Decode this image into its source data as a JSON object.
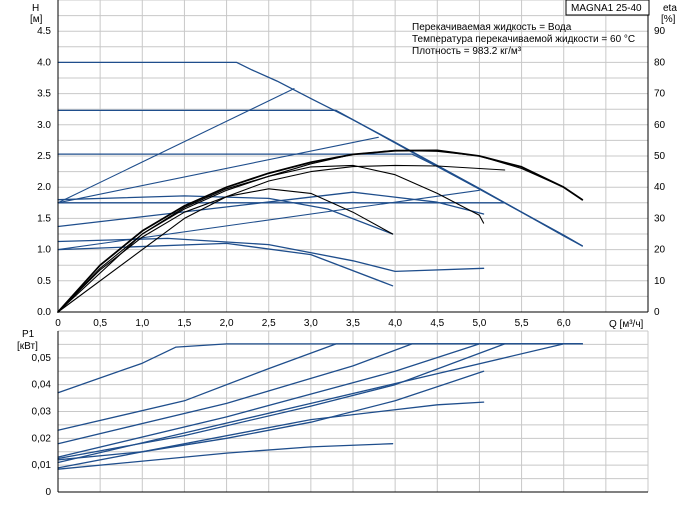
{
  "chart_data": [
    {
      "type": "line",
      "panel": "H-Q",
      "title_box": "MAGNA1 25-40",
      "info_lines": [
        "Перекачиваемая жидкость = Вода",
        "Температура перекачиваемой жидкости = 60 °C",
        "Плотность = 983.2 кг/м³"
      ],
      "ylabel": "H",
      "yunit": "[м]",
      "y2label": "eta",
      "y2unit": "[%]",
      "xlabel": "Q [м³/ч]",
      "xlim": [
        0,
        7.0
      ],
      "ylim": [
        0,
        5.0
      ],
      "y2lim": [
        0,
        100
      ],
      "grid": true,
      "xticks": [
        "0",
        "0,5",
        "1,0",
        "1,5",
        "2,0",
        "2,5",
        "3,0",
        "3,5",
        "4,0",
        "4,5",
        "5,0",
        "5,5",
        "6,0"
      ],
      "yticks": [
        "0.0",
        "0.5",
        "1.0",
        "1.5",
        "2.0",
        "2.5",
        "3.0",
        "3.5",
        "4.0",
        "4.5"
      ],
      "y2ticks": [
        "0",
        "10",
        "20",
        "30",
        "40",
        "50",
        "60",
        "70",
        "80",
        "90"
      ],
      "pump_series": [
        {
          "x": [
            0,
            2.12,
            2.3,
            2.6,
            3.0,
            3.5,
            4.0,
            4.5,
            5.0,
            5.5,
            6.0,
            6.22
          ],
          "y": [
            4.0,
            4.0,
            3.88,
            3.7,
            3.42,
            3.08,
            2.72,
            2.35,
            1.98,
            1.6,
            1.22,
            1.06
          ]
        },
        {
          "x": [
            0,
            3.3,
            4.0,
            4.5,
            5.0,
            5.5,
            6.0,
            6.22
          ],
          "y": [
            3.23,
            3.23,
            2.71,
            2.34,
            1.97,
            1.6,
            1.23,
            1.06
          ]
        },
        {
          "x": [
            0,
            4.2,
            4.5,
            5.0,
            5.5,
            6.0,
            6.22
          ],
          "y": [
            2.53,
            2.53,
            2.33,
            1.97,
            1.6,
            1.23,
            1.06
          ]
        },
        {
          "x": [
            0,
            5.3
          ],
          "y": [
            1.75,
            1.75
          ]
        },
        {
          "x": [
            0,
            1.5,
            2.5,
            3.2,
            3.97
          ],
          "y": [
            1.8,
            1.86,
            1.82,
            1.65,
            1.25
          ]
        },
        {
          "x": [
            0,
            1.3,
            2.5,
            3.5,
            4.0,
            5.05
          ],
          "y": [
            1.13,
            1.18,
            1.08,
            0.82,
            0.65,
            0.7
          ]
        },
        {
          "x": [
            0,
            2.0,
            3.0,
            3.97
          ],
          "y": [
            1.0,
            1.1,
            0.92,
            0.42
          ]
        },
        {
          "x": [
            0,
            3.5,
            4.5,
            5.05
          ],
          "y": [
            1.37,
            1.92,
            1.76,
            1.57
          ]
        }
      ],
      "system_series": [
        {
          "x": [
            0,
            2.8
          ],
          "y": [
            1.75,
            3.58
          ]
        },
        {
          "x": [
            0,
            3.8
          ],
          "y": [
            1.75,
            2.8
          ]
        },
        {
          "x": [
            0,
            5.0
          ],
          "y": [
            1.0,
            1.95
          ]
        }
      ],
      "eta_series": [
        {
          "x": [
            0,
            0.5,
            1.0,
            1.5,
            2.0,
            2.5,
            3.0,
            3.5,
            4.0,
            4.5,
            5.0,
            5.5,
            6.0,
            6.22
          ],
          "y": [
            0,
            15,
            26,
            34,
            40,
            44.5,
            48,
            50.5,
            51.7,
            51.8,
            50,
            46.5,
            40,
            36
          ]
        },
        {
          "x": [
            0,
            0.5,
            1.0,
            1.5,
            2.0,
            2.5,
            3.0,
            3.5,
            4.0,
            4.5,
            5.0,
            5.05
          ],
          "y": [
            0,
            14,
            25,
            33,
            39,
            43.5,
            46.5,
            47,
            44,
            38,
            31,
            28.5
          ]
        },
        {
          "x": [
            0,
            0.5,
            1.0,
            1.5,
            2.0,
            2.5,
            3.0,
            3.5,
            3.97
          ],
          "y": [
            0,
            13.5,
            24,
            32,
            37,
            39.5,
            38,
            32,
            25
          ]
        },
        {
          "x": [
            0,
            1.5,
            2.0,
            2.5,
            3.0,
            3.5,
            4.0,
            4.5,
            5.0,
            5.3
          ],
          "y": [
            0,
            30,
            37,
            42,
            45,
            46.6,
            47,
            46.8,
            46,
            45.5
          ]
        },
        {
          "x": [
            0,
            1.0,
            1.5,
            2.0,
            2.5,
            3.0,
            3.5,
            4.0,
            4.5,
            5.0,
            5.5,
            6.0,
            6.22
          ],
          "y": [
            0,
            25,
            33.5,
            39.5,
            43.5,
            47.5,
            50.5,
            51.8,
            51.5,
            50,
            46,
            40,
            36
          ]
        }
      ]
    },
    {
      "type": "line",
      "panel": "P1-Q",
      "ylabel": "P1",
      "yunit": "[кВт]",
      "xlim": [
        0,
        7.0
      ],
      "ylim": [
        0,
        0.06
      ],
      "grid": true,
      "yticks": [
        "0",
        "0,01",
        "0,02",
        "0,03",
        "0,04",
        "0,05"
      ],
      "series": [
        {
          "x": [
            0,
            1.0,
            1.4,
            2.0,
            6.22
          ],
          "y": [
            0.037,
            0.048,
            0.054,
            0.0552,
            0.0552
          ]
        },
        {
          "x": [
            0,
            1.5,
            2.5,
            3.3,
            6.22
          ],
          "y": [
            0.023,
            0.034,
            0.046,
            0.0552,
            0.0552
          ]
        },
        {
          "x": [
            0,
            2.0,
            3.5,
            4.2,
            6.22
          ],
          "y": [
            0.018,
            0.033,
            0.047,
            0.0552,
            0.0552
          ]
        },
        {
          "x": [
            0,
            2.0,
            4.0,
            5.0,
            6.22
          ],
          "y": [
            0.013,
            0.028,
            0.045,
            0.0552,
            0.0552
          ]
        },
        {
          "x": [
            0,
            1.5,
            3.0,
            4.0,
            5.3
          ],
          "y": [
            0.0125,
            0.021,
            0.032,
            0.04,
            0.0552
          ]
        },
        {
          "x": [
            0,
            3.0,
            4.5,
            5.05
          ],
          "y": [
            0.009,
            0.027,
            0.0325,
            0.0335
          ]
        },
        {
          "x": [
            0,
            2.0,
            3.0,
            3.97
          ],
          "y": [
            0.0085,
            0.0145,
            0.0168,
            0.018
          ]
        },
        {
          "x": [
            0,
            1.0,
            2.0,
            3.0,
            4.0,
            5.05
          ],
          "y": [
            0.012,
            0.015,
            0.02,
            0.026,
            0.034,
            0.045
          ]
        },
        {
          "x": [
            0,
            3.0,
            6.0,
            6.22
          ],
          "y": [
            0.011,
            0.033,
            0.0552,
            0.0552
          ]
        }
      ]
    }
  ]
}
